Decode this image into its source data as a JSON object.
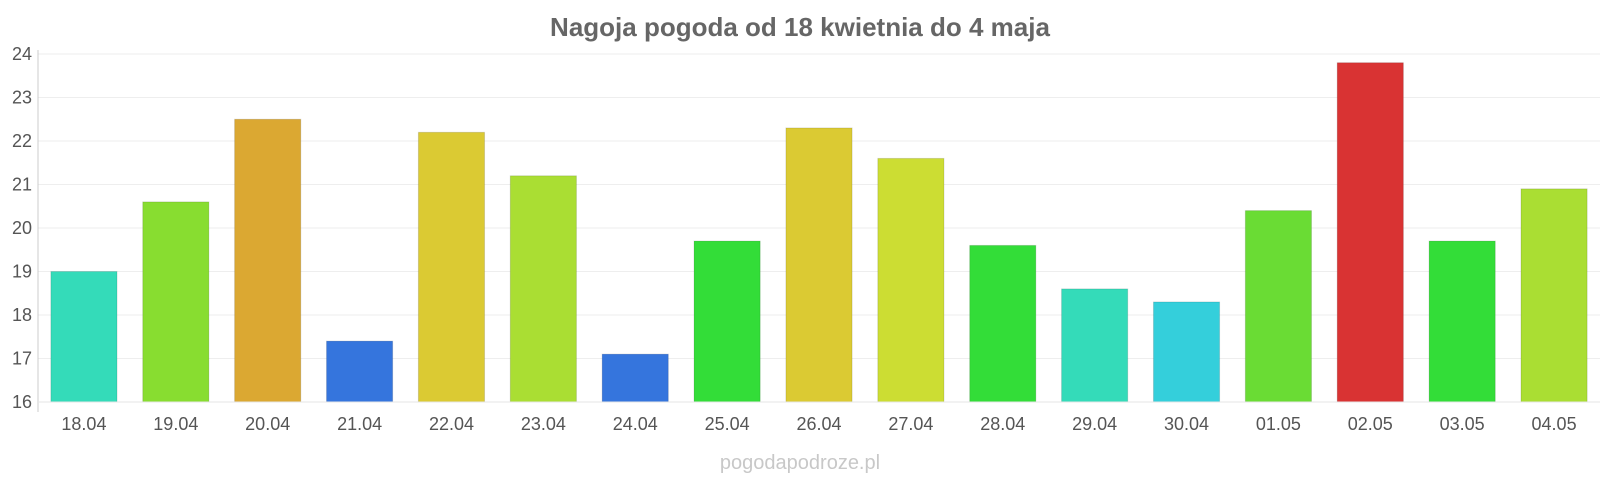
{
  "chart_data": {
    "type": "bar",
    "title": "Nagoja pogoda od 18 kwietnia do 4 maja",
    "xlabel": "",
    "ylabel": "",
    "ylim": [
      16,
      24
    ],
    "yticks": [
      16,
      17,
      18,
      19,
      20,
      21,
      22,
      23,
      24
    ],
    "grid": true,
    "categories": [
      "18.04",
      "19.04",
      "20.04",
      "21.04",
      "22.04",
      "23.04",
      "24.04",
      "25.04",
      "26.04",
      "27.04",
      "28.04",
      "29.04",
      "30.04",
      "01.05",
      "02.05",
      "03.05",
      "04.05"
    ],
    "values": [
      19.0,
      20.6,
      22.5,
      17.4,
      22.2,
      21.2,
      17.1,
      19.7,
      22.3,
      21.6,
      19.6,
      18.6,
      18.3,
      20.4,
      23.8,
      19.7,
      20.9
    ],
    "colors": [
      "#34dbb9",
      "#88dd30",
      "#dba832",
      "#3575dd",
      "#dbca33",
      "#aade33",
      "#3575dd",
      "#33dd38",
      "#dbca33",
      "#ccdd33",
      "#33dd38",
      "#34dbb9",
      "#34cfdb",
      "#6adc34",
      "#d93333",
      "#33dd38",
      "#aade33"
    ]
  },
  "footer": {
    "source": "pogodapodroze.pl"
  }
}
